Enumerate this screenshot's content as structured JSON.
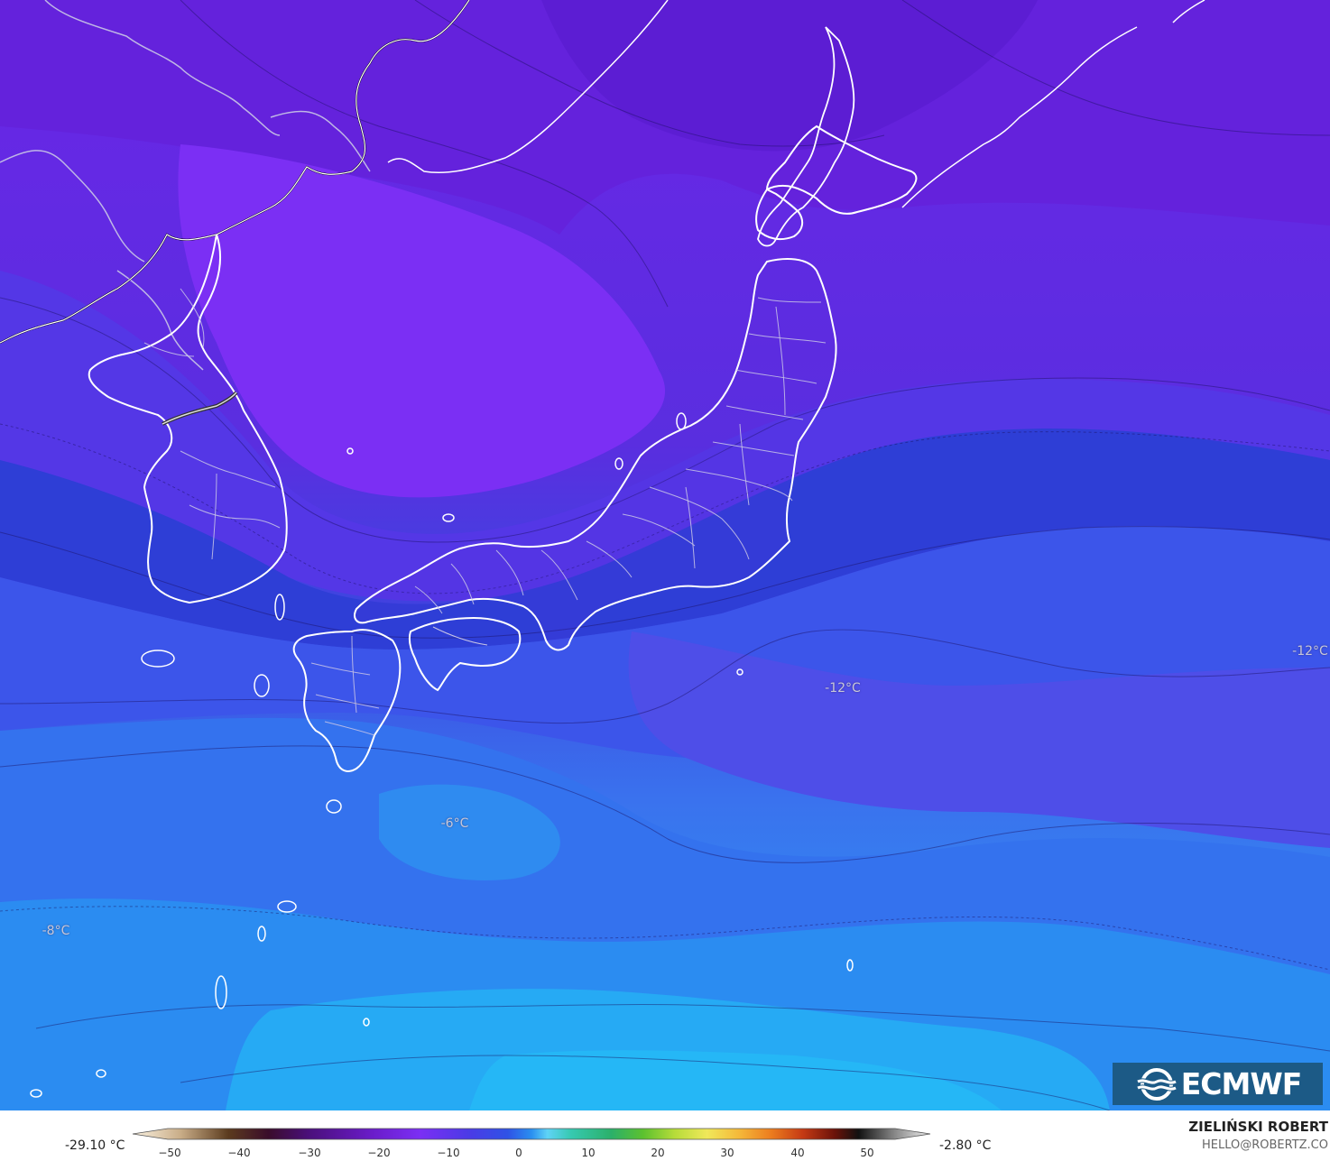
{
  "map": {
    "temperature_labels": [
      "-12°C",
      "-12°C",
      "-6°C",
      "-8°C"
    ]
  },
  "logo": {
    "text": "ECMWF"
  },
  "legend": {
    "min_value": "-29.10 °C",
    "max_value": "-2.80 °C",
    "ticks": [
      "−50",
      "−40",
      "−30",
      "−20",
      "−10",
      "0",
      "10",
      "20",
      "30",
      "40",
      "50"
    ]
  },
  "credit": {
    "name": "ZIELIŃSKI ROBERT",
    "email": "HELLO@ROBERTZ.CO"
  },
  "colors": {
    "deep_violet": "#6121d8",
    "violet": "#7a2ef2",
    "blue_violet": "#5533e6",
    "deep_blue": "#2f3fd9",
    "blue": "#3b5ff0",
    "sky_blue": "#2e8ff2",
    "light_blue": "#28b6f6"
  }
}
